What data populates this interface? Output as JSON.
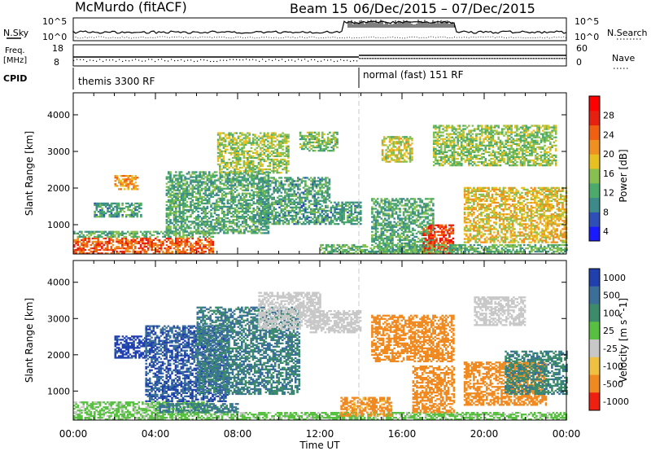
{
  "header": {
    "station": "McMurdo (fitACF)",
    "beam": "Beam 15",
    "dates": "06/Dec/2015 – 07/Dec/2015"
  },
  "strip": {
    "nsky_label": "N.Sky",
    "nsky_ticks": [
      "10^5",
      "10^0"
    ],
    "nsearch_label": "N.Search",
    "nsearch_ticks": [
      "10^5",
      "10^0"
    ],
    "freq_label_1": "Freq.",
    "freq_label_2": "[MHz]",
    "freq_ticks": [
      "18",
      "8"
    ],
    "nave_label": "Nave",
    "nave_ticks": [
      "60",
      "0"
    ],
    "cpid_label": "CPID",
    "cpid_segments": [
      "themis 3300 RF",
      "normal (fast) 151 RF"
    ]
  },
  "chart_data": [
    {
      "type": "heatmap",
      "title": "",
      "xlabel": "Time UT",
      "ylabel": "Slant Range [km]",
      "x_ticks": [
        "00:00",
        "04:00",
        "08:00",
        "12:00",
        "16:00",
        "20:00",
        "00:00"
      ],
      "y_ticks": [
        1000,
        2000,
        3000,
        4000
      ],
      "ylim": [
        200,
        4600
      ],
      "xlim_hours": [
        0,
        24
      ],
      "colorbar": {
        "label": "Power [dB]",
        "ticks": [
          4,
          8,
          12,
          16,
          20,
          24,
          28
        ]
      },
      "regions": [
        {
          "t0": 0.0,
          "t1": 6.8,
          "r0": 200,
          "r1": 650,
          "value": 26
        },
        {
          "t0": 0.0,
          "t1": 6.8,
          "r0": 650,
          "r1": 800,
          "value": 14
        },
        {
          "t0": 2.0,
          "t1": 3.1,
          "r0": 1950,
          "r1": 2350,
          "value": 22
        },
        {
          "t0": 1.0,
          "t1": 3.3,
          "r0": 1200,
          "r1": 1600,
          "value": 12
        },
        {
          "t0": 4.5,
          "t1": 9.5,
          "r0": 750,
          "r1": 2450,
          "value": 13
        },
        {
          "t0": 7.0,
          "t1": 10.5,
          "r0": 2400,
          "r1": 3500,
          "value": 17
        },
        {
          "t0": 9.0,
          "t1": 12.5,
          "r0": 1000,
          "r1": 2300,
          "value": 12
        },
        {
          "t0": 11.0,
          "t1": 12.8,
          "r0": 3000,
          "r1": 3500,
          "value": 15
        },
        {
          "t0": 12.5,
          "t1": 14.0,
          "r0": 1000,
          "r1": 1600,
          "value": 12
        },
        {
          "t0": 14.5,
          "t1": 17.5,
          "r0": 200,
          "r1": 1700,
          "value": 13
        },
        {
          "t0": 15.0,
          "t1": 16.5,
          "r0": 2700,
          "r1": 3400,
          "value": 18
        },
        {
          "t0": 17.0,
          "t1": 18.5,
          "r0": 200,
          "r1": 1000,
          "value": 28
        },
        {
          "t0": 17.5,
          "t1": 23.5,
          "r0": 2600,
          "r1": 3700,
          "value": 16
        },
        {
          "t0": 19.0,
          "t1": 24.0,
          "r0": 500,
          "r1": 2000,
          "value": 20
        },
        {
          "t0": 12.0,
          "t1": 24.0,
          "r0": 200,
          "r1": 450,
          "value": 14
        }
      ]
    },
    {
      "type": "heatmap",
      "title": "",
      "xlabel": "Time UT",
      "ylabel": "Slant Range [km]",
      "x_ticks": [
        "00:00",
        "04:00",
        "08:00",
        "12:00",
        "16:00",
        "20:00",
        "00:00"
      ],
      "y_ticks": [
        1000,
        2000,
        3000,
        4000
      ],
      "ylim": [
        200,
        4600
      ],
      "xlim_hours": [
        0,
        24
      ],
      "colorbar": {
        "label": "Velocity [m s^-1]",
        "ticks": [
          1000,
          500,
          100,
          25,
          -25,
          -100,
          -500,
          -1000
        ]
      },
      "regions": [
        {
          "t0": 0.0,
          "t1": 24.0,
          "r0": 200,
          "r1": 400,
          "value": 50
        },
        {
          "t0": 0.0,
          "t1": 6.5,
          "r0": 400,
          "r1": 700,
          "value": 40
        },
        {
          "t0": 4.0,
          "t1": 8.0,
          "r0": 400,
          "r1": 650,
          "value": 300
        },
        {
          "t0": 2.0,
          "t1": 3.5,
          "r0": 1900,
          "r1": 2500,
          "value": 1000
        },
        {
          "t0": 3.5,
          "t1": 7.5,
          "r0": 700,
          "r1": 2800,
          "value": 700
        },
        {
          "t0": 6.0,
          "t1": 11.0,
          "r0": 900,
          "r1": 3300,
          "value": 300
        },
        {
          "t0": 9.0,
          "t1": 12.0,
          "r0": 2700,
          "r1": 3700,
          "value": 0
        },
        {
          "t0": 11.5,
          "t1": 14.0,
          "r0": 2600,
          "r1": 3200,
          "value": 0
        },
        {
          "t0": 13.0,
          "t1": 15.5,
          "r0": 300,
          "r1": 800,
          "value": -150
        },
        {
          "t0": 14.5,
          "t1": 18.5,
          "r0": 1800,
          "r1": 3100,
          "value": -200
        },
        {
          "t0": 16.5,
          "t1": 18.5,
          "r0": 400,
          "r1": 1700,
          "value": -200
        },
        {
          "t0": 19.0,
          "t1": 23.0,
          "r0": 600,
          "r1": 1800,
          "value": -300
        },
        {
          "t0": 21.0,
          "t1": 24.0,
          "r0": 900,
          "r1": 2100,
          "value": 250
        },
        {
          "t0": 19.5,
          "t1": 22.0,
          "r0": 2800,
          "r1": 3600,
          "value": 0
        }
      ]
    }
  ]
}
